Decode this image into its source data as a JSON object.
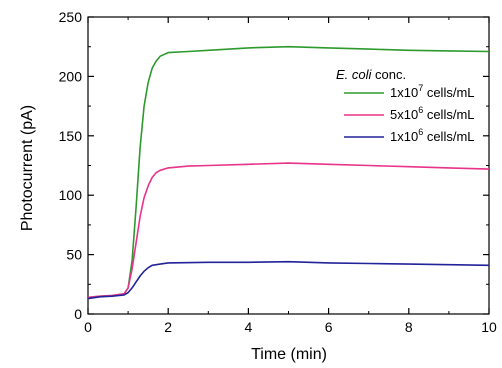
{
  "chart_data": {
    "type": "line",
    "title": "",
    "xlabel": "Time (min)",
    "ylabel": "Photocurrent (pA)",
    "xlim": [
      0,
      10
    ],
    "ylim": [
      0,
      250
    ],
    "xticks": [
      "0",
      "2",
      "4",
      "6",
      "8",
      "10"
    ],
    "yticks": [
      "0",
      "50",
      "100",
      "150",
      "200",
      "250"
    ],
    "grid": false,
    "legend_position": "right",
    "legend_title": {
      "italic": "E. coli",
      "rest": " conc."
    },
    "series": [
      {
        "name": "1x10^7 cells/mL",
        "legend": {
          "base": "1x10",
          "exp": "7",
          "unit": " cells/mL"
        },
        "color": "#2e9a2e",
        "points": [
          [
            0,
            14
          ],
          [
            0.3,
            15
          ],
          [
            0.6,
            15.5
          ],
          [
            0.9,
            17
          ],
          [
            1.0,
            22
          ],
          [
            1.1,
            45
          ],
          [
            1.2,
            90
          ],
          [
            1.3,
            140
          ],
          [
            1.4,
            175
          ],
          [
            1.5,
            195
          ],
          [
            1.6,
            207
          ],
          [
            1.7,
            213
          ],
          [
            1.8,
            217
          ],
          [
            2.0,
            220
          ],
          [
            2.5,
            221
          ],
          [
            3,
            222
          ],
          [
            4,
            224
          ],
          [
            5,
            225
          ],
          [
            6,
            224
          ],
          [
            7,
            223
          ],
          [
            8,
            222
          ],
          [
            9,
            221.5
          ],
          [
            10,
            221
          ]
        ]
      },
      {
        "name": "5x10^6 cells/mL",
        "legend": {
          "base": "5x10",
          "exp": "6",
          "unit": " cells/mL"
        },
        "color": "#e8338a",
        "points": [
          [
            0,
            14
          ],
          [
            0.3,
            15
          ],
          [
            0.6,
            15.5
          ],
          [
            0.9,
            17
          ],
          [
            1.0,
            22
          ],
          [
            1.1,
            38
          ],
          [
            1.2,
            60
          ],
          [
            1.3,
            82
          ],
          [
            1.4,
            98
          ],
          [
            1.5,
            108
          ],
          [
            1.6,
            115
          ],
          [
            1.7,
            119
          ],
          [
            1.8,
            121
          ],
          [
            2.0,
            123
          ],
          [
            2.5,
            124.5
          ],
          [
            3,
            125
          ],
          [
            4,
            126
          ],
          [
            5,
            127
          ],
          [
            6,
            126
          ],
          [
            7,
            125
          ],
          [
            8,
            124
          ],
          [
            9,
            123
          ],
          [
            10,
            122
          ]
        ]
      },
      {
        "name": "1x10^6 cells/mL",
        "legend": {
          "base": "1x10",
          "exp": "6",
          "unit": " cells/mL"
        },
        "color": "#22229a",
        "points": [
          [
            0,
            13
          ],
          [
            0.3,
            14.5
          ],
          [
            0.6,
            15
          ],
          [
            0.9,
            16
          ],
          [
            1.0,
            18
          ],
          [
            1.1,
            22
          ],
          [
            1.2,
            27
          ],
          [
            1.3,
            32
          ],
          [
            1.4,
            36
          ],
          [
            1.5,
            39
          ],
          [
            1.6,
            41
          ],
          [
            1.8,
            42
          ],
          [
            2.0,
            43
          ],
          [
            3,
            43.5
          ],
          [
            4,
            43.5
          ],
          [
            5,
            44
          ],
          [
            6,
            43
          ],
          [
            7,
            42.5
          ],
          [
            8,
            42
          ],
          [
            9,
            41.5
          ],
          [
            10,
            41
          ]
        ]
      }
    ]
  }
}
